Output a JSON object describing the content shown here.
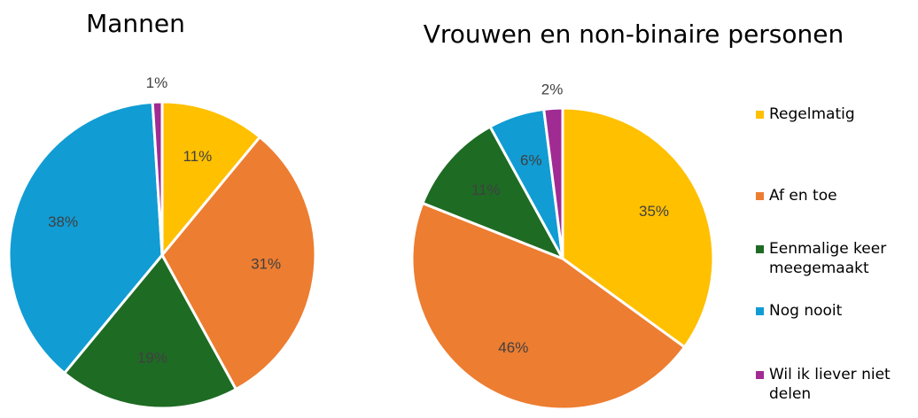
{
  "chart_data": [
    {
      "type": "pie",
      "title": "Mannen",
      "categories": [
        "Regelmatig",
        "Af en toe",
        "Eenmalige keer meegemaakt",
        "Nog nooit",
        "Wil ik liever niet delen"
      ],
      "values": [
        11,
        31,
        19,
        38,
        1
      ],
      "value_labels": [
        "11%",
        "31%",
        "19%",
        "38%",
        "1%"
      ],
      "colors": [
        "#FFC000",
        "#ED7D31",
        "#1E6B24",
        "#119CD4",
        "#A02B93"
      ]
    },
    {
      "type": "pie",
      "title": "Vrouwen en non-binaire personen",
      "categories": [
        "Regelmatig",
        "Af en toe",
        "Eenmalige keer meegemaakt",
        "Nog nooit",
        "Wil ik liever niet delen"
      ],
      "values": [
        35,
        46,
        11,
        6,
        2
      ],
      "value_labels": [
        "35%",
        "46%",
        "11%",
        "6%",
        "2%"
      ],
      "colors": [
        "#FFC000",
        "#ED7D31",
        "#1E6B24",
        "#119CD4",
        "#A02B93"
      ],
      "legend": "right"
    }
  ]
}
